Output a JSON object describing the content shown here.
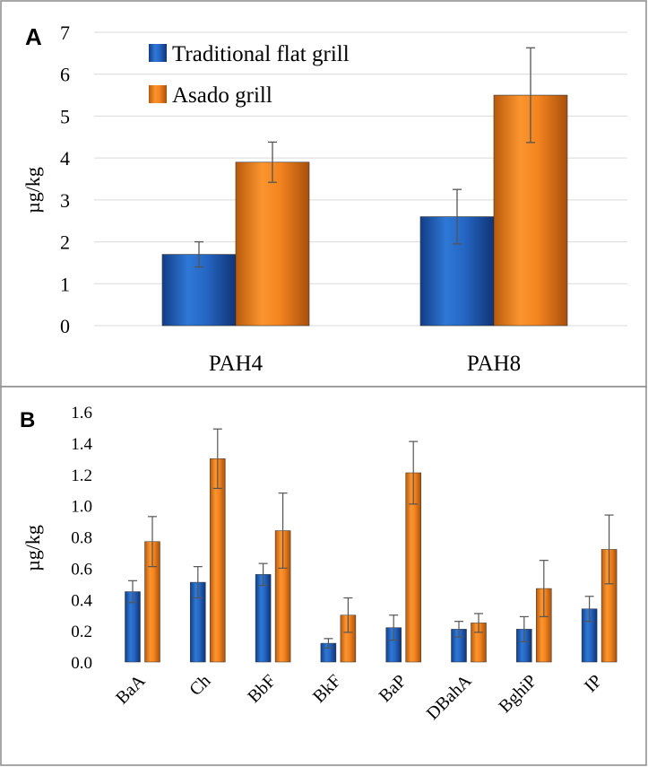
{
  "chart_data": [
    {
      "panel": "A",
      "type": "bar",
      "ylabel": "µg/kg",
      "ylim": [
        0,
        7
      ],
      "yticks": [
        "0",
        "1",
        "2",
        "3",
        "4",
        "5",
        "6",
        "7"
      ],
      "categories": [
        "PAH4",
        "PAH8"
      ],
      "grid": true,
      "legend_position": "top-left",
      "series": [
        {
          "name": "Traditional flat grill",
          "color": "#1f5fbf",
          "values": [
            1.7,
            2.6
          ],
          "errors": [
            0.3,
            0.65
          ]
        },
        {
          "name": "Asado grill",
          "color": "#f07f1a",
          "values": [
            3.9,
            5.5
          ],
          "errors": [
            0.48,
            1.13
          ]
        }
      ]
    },
    {
      "panel": "B",
      "type": "bar",
      "ylabel": "µg/kg",
      "ylim": [
        0,
        1.6
      ],
      "yticks": [
        "0.0",
        "0.2",
        "0.4",
        "0.6",
        "0.8",
        "1.0",
        "1.2",
        "1.4",
        "1.6"
      ],
      "categories": [
        "BaA",
        "Ch",
        "BbF",
        "BkF",
        "BaP",
        "DBahA",
        "BghiP",
        "IP"
      ],
      "grid": false,
      "series": [
        {
          "color": "#1f5fbf",
          "values": [
            0.45,
            0.51,
            0.56,
            0.12,
            0.22,
            0.21,
            0.21,
            0.34
          ],
          "errors": [
            0.07,
            0.1,
            0.07,
            0.03,
            0.08,
            0.05,
            0.08,
            0.08
          ]
        },
        {
          "color": "#f07f1a",
          "values": [
            0.77,
            1.3,
            0.84,
            0.3,
            1.21,
            0.25,
            0.47,
            0.72
          ],
          "errors": [
            0.16,
            0.19,
            0.24,
            0.11,
            0.2,
            0.06,
            0.18,
            0.22
          ]
        }
      ]
    }
  ]
}
